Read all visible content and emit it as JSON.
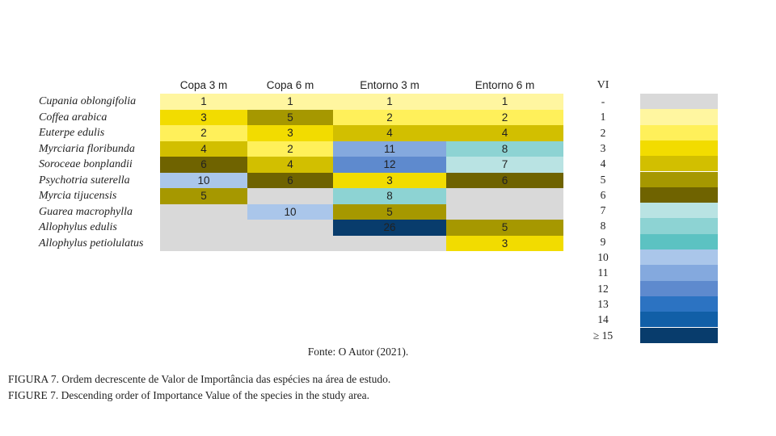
{
  "chart_data": {
    "type": "heatmap",
    "columns": [
      "Copa 3 m",
      "Copa 6 m",
      "Entorno 3 m",
      "Entorno 6 m"
    ],
    "rows": [
      {
        "species": "Cupania oblongifolia",
        "values": [
          1,
          1,
          1,
          1
        ]
      },
      {
        "species": "Coffea arabica",
        "values": [
          3,
          5,
          2,
          2
        ]
      },
      {
        "species": "Euterpe edulis",
        "values": [
          2,
          3,
          4,
          4
        ]
      },
      {
        "species": "Myrciaria floribunda",
        "values": [
          4,
          2,
          11,
          8
        ]
      },
      {
        "species": "Soroceae bonplandii",
        "values": [
          6,
          4,
          12,
          7
        ]
      },
      {
        "species": "Psychotria suterella",
        "values": [
          10,
          6,
          3,
          6
        ]
      },
      {
        "species": "Myrcia tijucensis",
        "values": [
          5,
          null,
          8,
          null
        ]
      },
      {
        "species": "Guarea macrophylla",
        "values": [
          null,
          10,
          5,
          null
        ]
      },
      {
        "species": "Allophylus edulis",
        "values": [
          null,
          null,
          26,
          5
        ]
      },
      {
        "species": "Allophylus petiolulatus",
        "values": [
          null,
          null,
          null,
          3
        ]
      }
    ],
    "legend": {
      "title": "VI",
      "entries": [
        {
          "label": "-",
          "color": "#d9d9d9"
        },
        {
          "label": "1",
          "color": "#fff6a0"
        },
        {
          "label": "2",
          "color": "#fff05a"
        },
        {
          "label": "3",
          "color": "#f2dc00"
        },
        {
          "label": "4",
          "color": "#d2bf00"
        },
        {
          "label": "5",
          "color": "#a69800"
        },
        {
          "label": "6",
          "color": "#6f6300"
        },
        {
          "label": "7",
          "color": "#b9e3e3"
        },
        {
          "label": "8",
          "color": "#8dd3d3"
        },
        {
          "label": "9",
          "color": "#5cc2c2"
        },
        {
          "label": "10",
          "color": "#aac6ea"
        },
        {
          "label": "11",
          "color": "#84a9de"
        },
        {
          "label": "12",
          "color": "#5e8ace"
        },
        {
          "label": "13",
          "color": "#2c73c2"
        },
        {
          "label": "14",
          "color": "#115fa7"
        },
        {
          "label": "≥ 15",
          "color": "#083c6c"
        }
      ]
    }
  },
  "source": "Fonte: O Autor (2021).",
  "caption_pt": "FIGURA 7.  Ordem decrescente de Valor de Importância das espécies na área de estudo.",
  "caption_en": "FIGURE 7. Descending order of Importance Value of the species in the study area."
}
